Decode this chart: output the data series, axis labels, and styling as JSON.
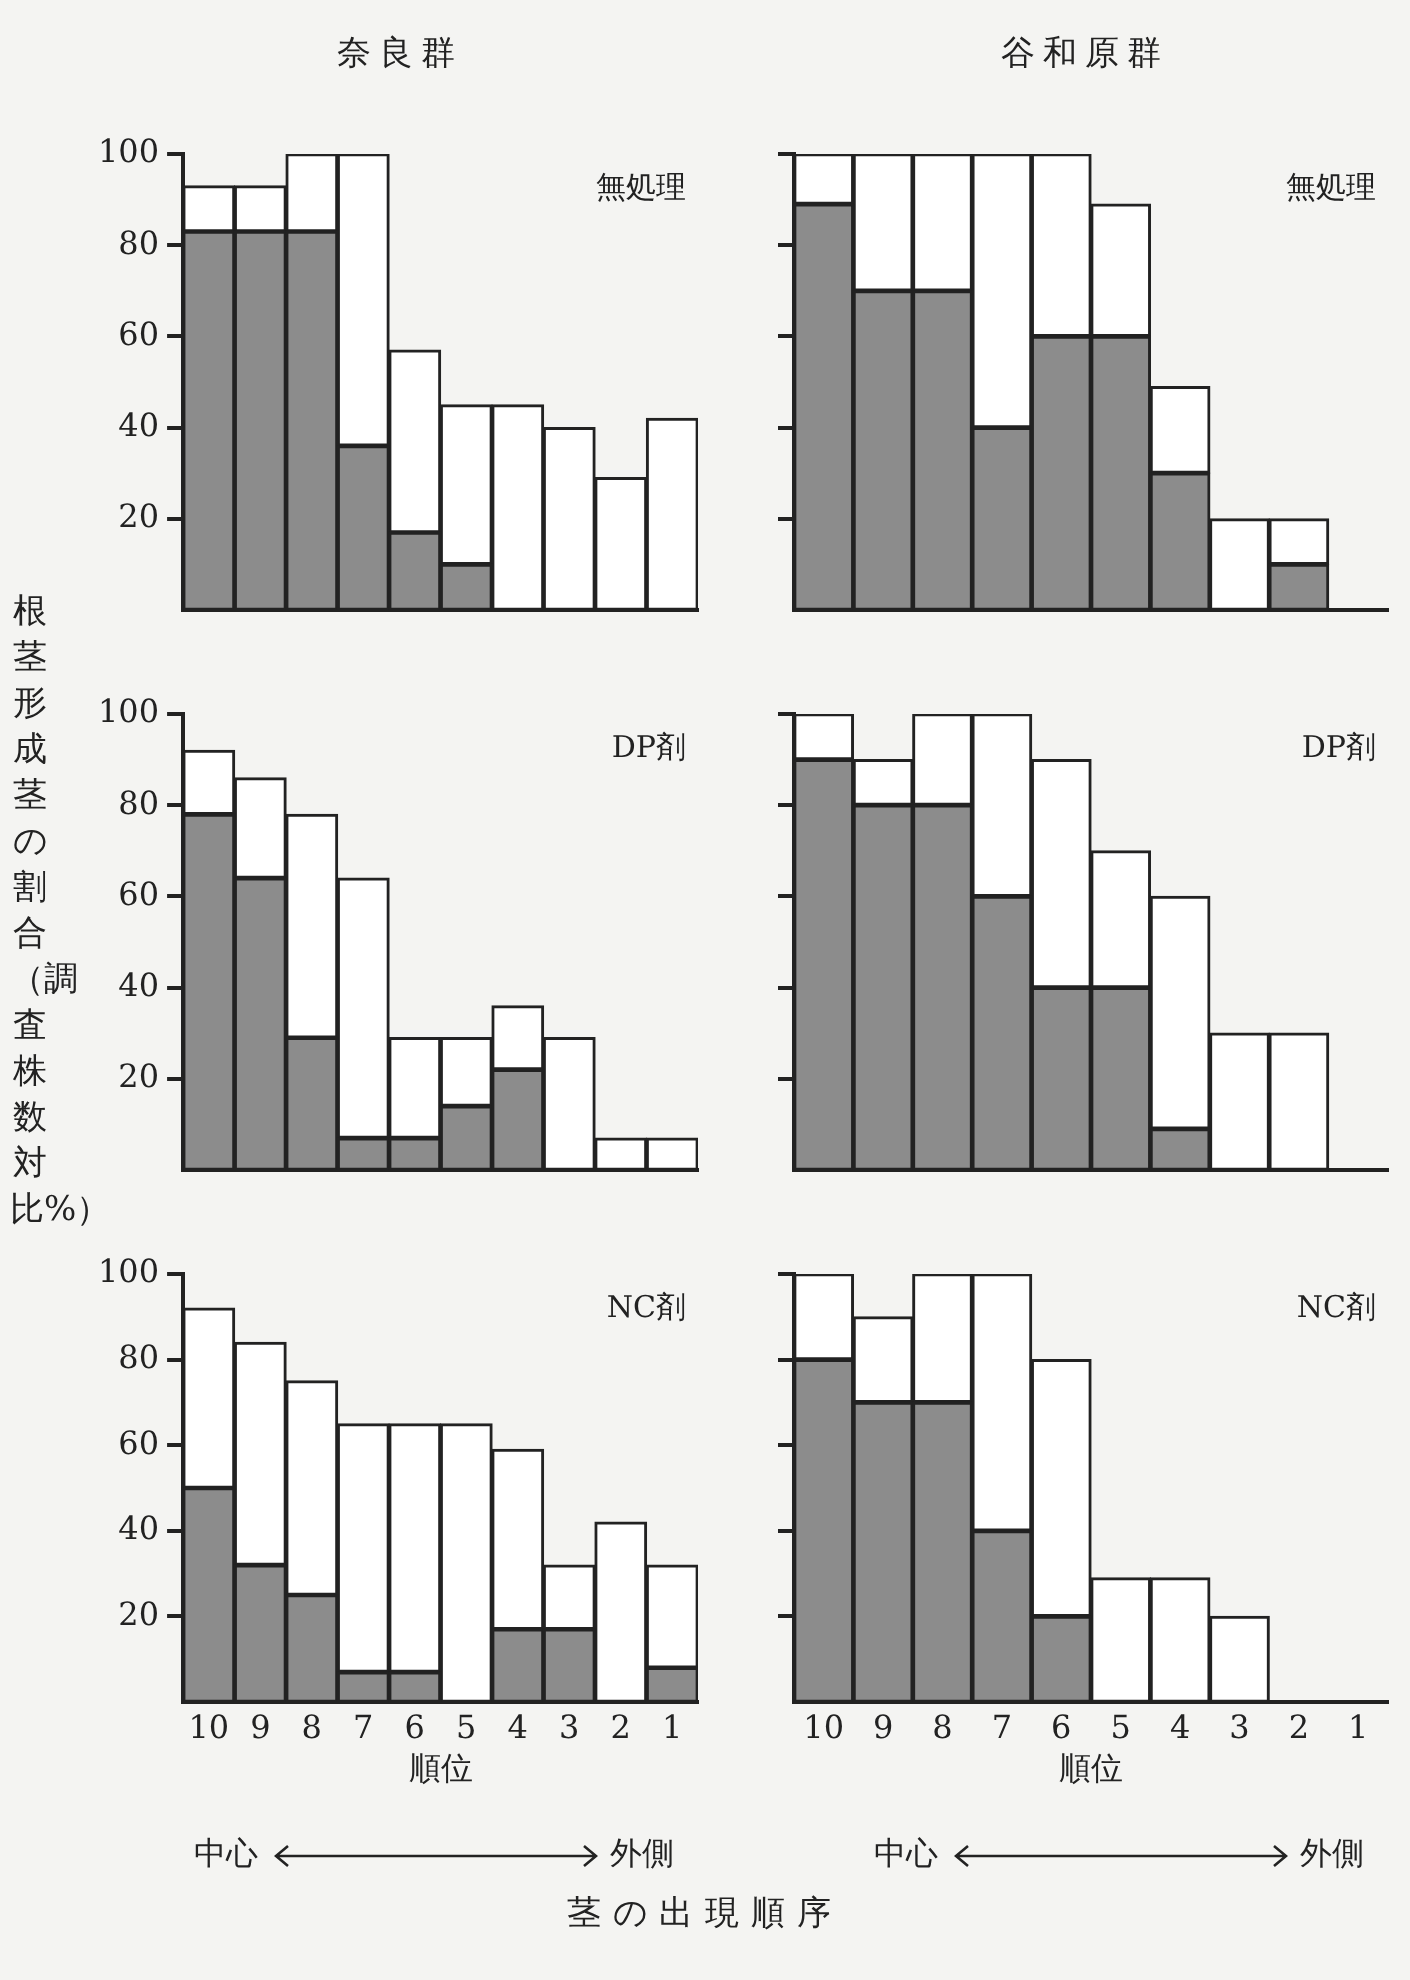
{
  "chart_data": [
    {
      "type": "bar",
      "title": "奈良群",
      "categories": [
        "10",
        "9",
        "8",
        "7",
        "6",
        "5",
        "4",
        "3",
        "2",
        "1"
      ],
      "stacked": true,
      "series": [
        {
          "color": "#8c8c8c",
          "values": [
            83,
            83,
            83,
            36,
            17,
            10,
            null,
            null,
            null,
            null
          ]
        },
        {
          "color": "#ffffff",
          "values": [
            10,
            10,
            17,
            64,
            40,
            35,
            45,
            40,
            29,
            42
          ]
        }
      ],
      "ylim": [
        0,
        100
      ],
      "yticks": [
        20,
        40,
        60,
        80,
        100
      ],
      "grid": false,
      "legend": false,
      "tick_labels": "y",
      "annotations": [
        "無処理"
      ]
    },
    {
      "type": "bar",
      "title": "谷和原群",
      "categories": [
        "10",
        "9",
        "8",
        "7",
        "6",
        "5",
        "4",
        "3",
        "2",
        "1"
      ],
      "stacked": true,
      "series": [
        {
          "color": "#8c8c8c",
          "values": [
            89,
            70,
            70,
            40,
            60,
            60,
            30,
            null,
            10,
            null
          ]
        },
        {
          "color": "#ffffff",
          "values": [
            11,
            30,
            30,
            60,
            40,
            29,
            19,
            20,
            10,
            null
          ]
        }
      ],
      "ylim": [
        0,
        100
      ],
      "yticks": [
        20,
        40,
        60,
        80,
        100
      ],
      "grid": false,
      "legend": false,
      "tick_labels": false,
      "annotations": [
        "無処理"
      ]
    },
    {
      "type": "bar",
      "ylabel": "根茎形成茎の割合（調査株数対比%）",
      "categories": [
        "10",
        "9",
        "8",
        "7",
        "6",
        "5",
        "4",
        "3",
        "2",
        "1"
      ],
      "stacked": true,
      "series": [
        {
          "color": "#8c8c8c",
          "values": [
            78,
            64,
            29,
            7,
            7,
            14,
            22,
            null,
            null,
            null
          ]
        },
        {
          "color": "#ffffff",
          "values": [
            14,
            22,
            49,
            57,
            22,
            15,
            14,
            29,
            7,
            7
          ]
        }
      ],
      "ylim": [
        0,
        100
      ],
      "yticks": [
        20,
        40,
        60,
        80,
        100
      ],
      "grid": false,
      "legend": false,
      "tick_labels": "y",
      "annotations": [
        "DP剤"
      ]
    },
    {
      "type": "bar",
      "categories": [
        "10",
        "9",
        "8",
        "7",
        "6",
        "5",
        "4",
        "3",
        "2",
        "1"
      ],
      "stacked": true,
      "series": [
        {
          "color": "#8c8c8c",
          "values": [
            90,
            80,
            80,
            60,
            40,
            40,
            9,
            null,
            null,
            null
          ]
        },
        {
          "color": "#ffffff",
          "values": [
            10,
            10,
            20,
            40,
            50,
            30,
            51,
            30,
            30,
            null
          ]
        }
      ],
      "ylim": [
        0,
        100
      ],
      "yticks": [
        20,
        40,
        60,
        80,
        100
      ],
      "grid": false,
      "legend": false,
      "tick_labels": false,
      "annotations": [
        "DP剤"
      ]
    },
    {
      "type": "bar",
      "xlabel": "順位",
      "categories": [
        "10",
        "9",
        "8",
        "7",
        "6",
        "5",
        "4",
        "3",
        "2",
        "1"
      ],
      "stacked": true,
      "series": [
        {
          "color": "#8c8c8c",
          "values": [
            50,
            32,
            25,
            7,
            7,
            null,
            17,
            17,
            null,
            8
          ]
        },
        {
          "color": "#ffffff",
          "values": [
            42,
            52,
            50,
            58,
            58,
            65,
            42,
            15,
            42,
            24
          ]
        }
      ],
      "ylim": [
        0,
        100
      ],
      "yticks": [
        20,
        40,
        60,
        80,
        100
      ],
      "grid": false,
      "legend": false,
      "annotations": [
        "NC剤",
        "中心",
        "外側",
        "茎の出現順序"
      ]
    },
    {
      "type": "bar",
      "xlabel": "順位",
      "categories": [
        "10",
        "9",
        "8",
        "7",
        "6",
        "5",
        "4",
        "3",
        "2",
        "1"
      ],
      "stacked": true,
      "series": [
        {
          "color": "#8c8c8c",
          "values": [
            80,
            70,
            70,
            40,
            20,
            null,
            null,
            null,
            null,
            null
          ]
        },
        {
          "color": "#ffffff",
          "values": [
            20,
            20,
            30,
            60,
            60,
            29,
            29,
            20,
            null,
            null
          ]
        }
      ],
      "ylim": [
        0,
        100
      ],
      "yticks": [
        20,
        40,
        60,
        80,
        100
      ],
      "grid": false,
      "legend": false,
      "tick_labels": "x",
      "annotations": [
        "NC剤",
        "中心",
        "外側"
      ]
    }
  ]
}
